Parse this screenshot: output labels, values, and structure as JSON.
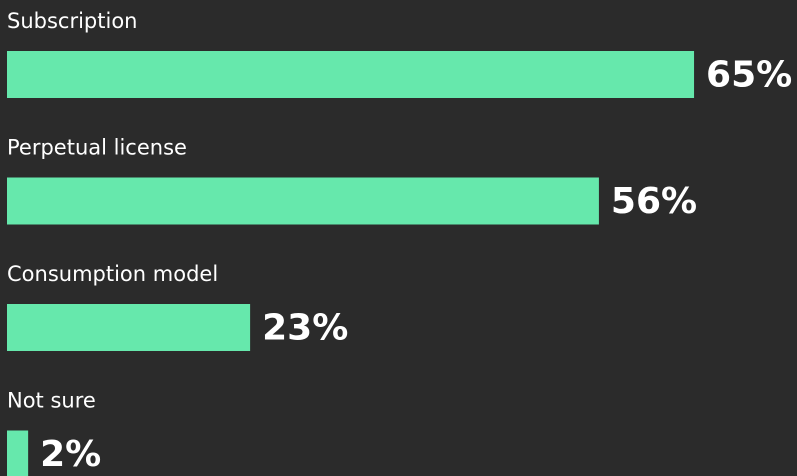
{
  "chart_data": {
    "type": "bar",
    "orientation": "horizontal",
    "categories": [
      "Subscription",
      "Perpetual license",
      "Consumption model",
      "Not sure"
    ],
    "values": [
      65,
      56,
      23,
      2
    ],
    "value_labels": [
      "65%",
      "56%",
      "23%",
      "2%"
    ],
    "color": "#66e8ac"
  }
}
